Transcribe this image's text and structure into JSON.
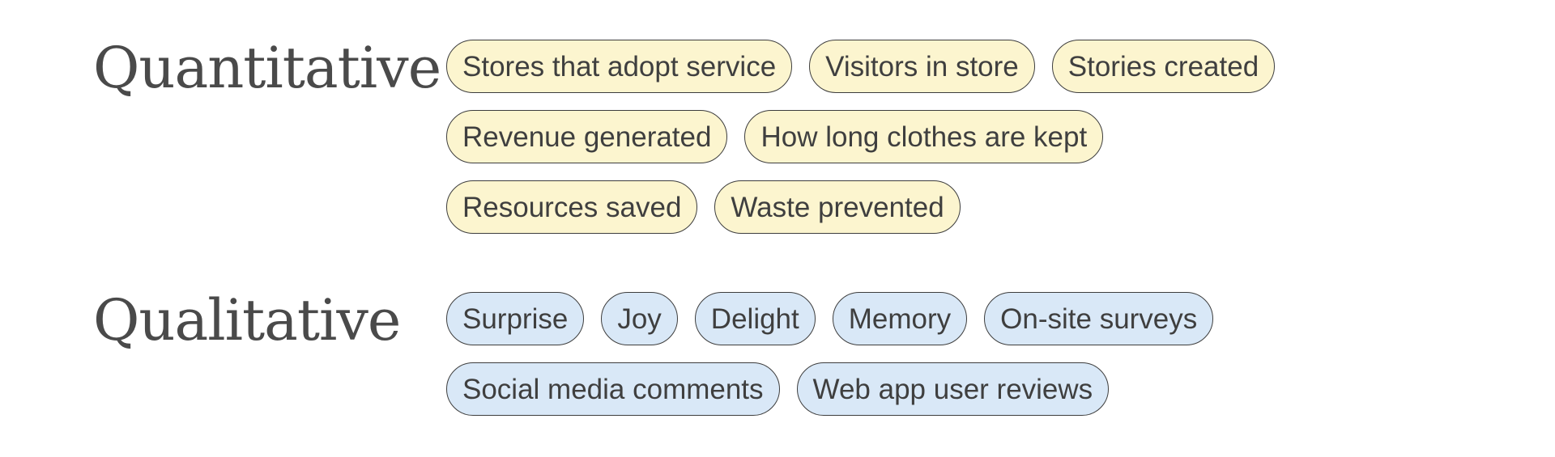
{
  "colors": {
    "quantitative_pill_fill": "#fcf5cf",
    "qualitative_pill_fill": "#d9e8f7",
    "pill_border": "#3d3d3d",
    "text": "#3f3f3f"
  },
  "quantitative": {
    "title": "Quantitative",
    "rows": [
      [
        "Stores that adopt service",
        "Visitors in store",
        "Stories created"
      ],
      [
        "Revenue generated",
        "How long clothes are kept"
      ],
      [
        "Resources saved",
        "Waste prevented"
      ]
    ]
  },
  "qualitative": {
    "title": "Qualitative",
    "rows": [
      [
        "Surprise",
        "Joy",
        "Delight",
        "Memory",
        "On-site surveys"
      ],
      [
        "Social media comments",
        "Web app user reviews"
      ]
    ]
  }
}
